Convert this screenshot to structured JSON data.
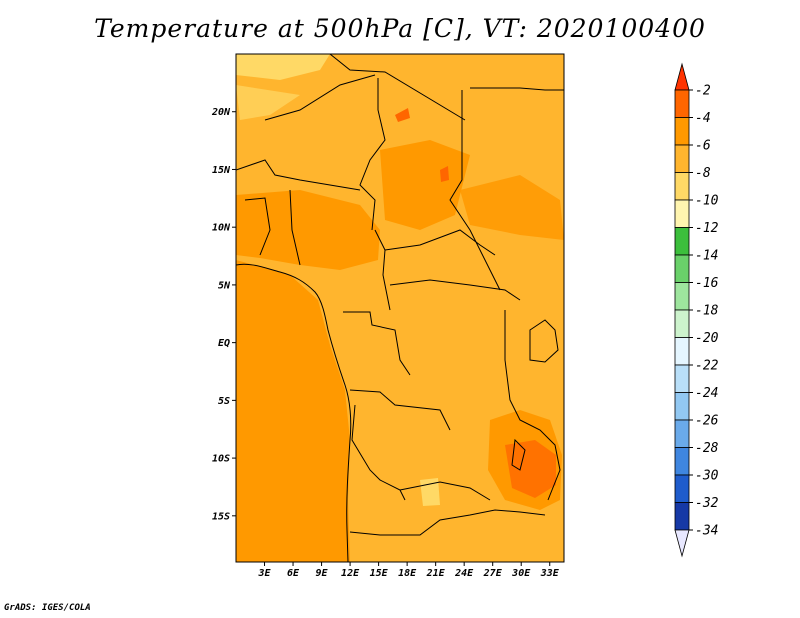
{
  "title": "Temperature at 500hPa [C], VT: 2020100400",
  "footer": "GrADS: IGES/COLA",
  "map": {
    "lon_range": [
      0,
      34.5
    ],
    "lat_range": [
      -19,
      25
    ],
    "x_ticks": [
      {
        "value": 3,
        "label": "3E"
      },
      {
        "value": 6,
        "label": "6E"
      },
      {
        "value": 9,
        "label": "9E"
      },
      {
        "value": 12,
        "label": "12E"
      },
      {
        "value": 15,
        "label": "15E"
      },
      {
        "value": 18,
        "label": "18E"
      },
      {
        "value": 21,
        "label": "21E"
      },
      {
        "value": 24,
        "label": "24E"
      },
      {
        "value": 27,
        "label": "27E"
      },
      {
        "value": 30,
        "label": "30E"
      },
      {
        "value": 33,
        "label": "33E"
      }
    ],
    "y_ticks": [
      {
        "value": 20,
        "label": "20N"
      },
      {
        "value": 15,
        "label": "15N"
      },
      {
        "value": 10,
        "label": "10N"
      },
      {
        "value": 5,
        "label": "5N"
      },
      {
        "value": 0,
        "label": "EQ"
      },
      {
        "value": -5,
        "label": "5S"
      },
      {
        "value": -10,
        "label": "10S"
      },
      {
        "value": -15,
        "label": "15S"
      }
    ]
  },
  "colorbar": {
    "labels": [
      "-2",
      "-4",
      "-6",
      "-8",
      "-10",
      "-12",
      "-14",
      "-16",
      "-18",
      "-20",
      "-22",
      "-24",
      "-26",
      "-28",
      "-30",
      "-32",
      "-34"
    ],
    "colors": [
      "#ff3300",
      "#ff6600",
      "#ff9900",
      "#ffb52e",
      "#ffd966",
      "#fff5b0",
      "#3cbf3c",
      "#6ad16a",
      "#9ee59e",
      "#cdf3cd",
      "#e5f6ff",
      "#b9dff8",
      "#92c8f2",
      "#6aaaea",
      "#3f86e0",
      "#1f5ccc",
      "#1639a6",
      "#0b1a78",
      "#e8e8ff"
    ]
  },
  "colors": {
    "field_base": "#ffb52e",
    "field_warm": "#ff9900",
    "field_hot": "#ff6600",
    "field_cool": "#ffd966",
    "border": "#000000"
  }
}
